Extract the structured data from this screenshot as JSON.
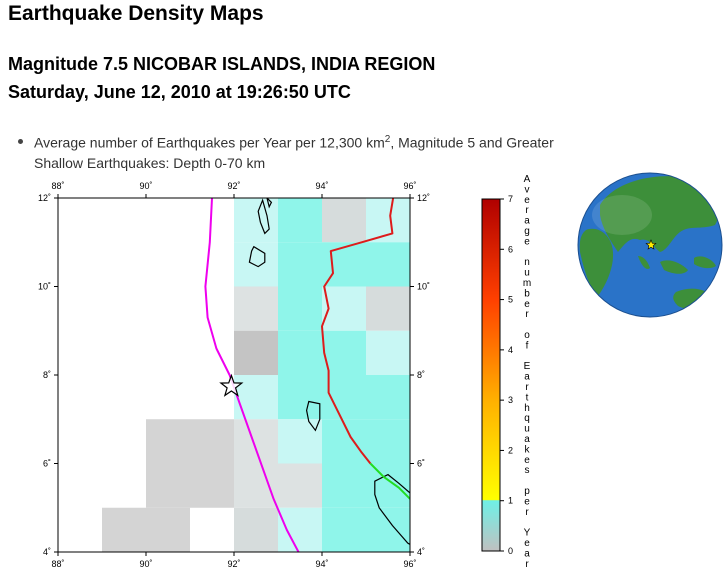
{
  "page": {
    "title": "Earthquake Density Maps",
    "event_line": "Magnitude 7.5 NICOBAR ISLANDS, INDIA REGION",
    "date_line": "Saturday, June 12, 2010 at 19:26:50 UTC",
    "bullet": {
      "text_before": "Average number of Earthquakes per Year per 12,300 km",
      "superscript": "2",
      "text_after": ", Magnitude 5 and Greater",
      "second_line": "Shallow Earthquakes: Depth 0-70 km"
    }
  },
  "map": {
    "lon_range": [
      88,
      96
    ],
    "lat_range": [
      4,
      12
    ],
    "lon_ticks": [
      {
        "value": 88,
        "label": "88˚"
      },
      {
        "value": 90,
        "label": "90˚"
      },
      {
        "value": 92,
        "label": "92˚"
      },
      {
        "value": 94,
        "label": "94˚"
      },
      {
        "value": 96,
        "label": "96˚"
      }
    ],
    "lat_ticks": [
      {
        "value": 4,
        "label": "4˚"
      },
      {
        "value": 6,
        "label": "6˚"
      },
      {
        "value": 8,
        "label": "8˚"
      },
      {
        "value": 10,
        "label": "10˚"
      },
      {
        "value": 12,
        "label": "12˚"
      }
    ],
    "cell_size_deg": 1,
    "density_cells": [
      {
        "lon": 92.5,
        "lat": 11.5,
        "value": 1.0
      },
      {
        "lon": 93.5,
        "lat": 11.5,
        "value": 1.2
      },
      {
        "lon": 94.5,
        "lat": 11.5,
        "value": 0.7
      },
      {
        "lon": 95.5,
        "lat": 11.5,
        "value": 1.1
      },
      {
        "lon": 92.5,
        "lat": 10.5,
        "value": 1.0
      },
      {
        "lon": 93.5,
        "lat": 10.5,
        "value": 1.3
      },
      {
        "lon": 94.5,
        "lat": 10.5,
        "value": 1.3
      },
      {
        "lon": 95.5,
        "lat": 10.5,
        "value": 1.3
      },
      {
        "lon": 96.5,
        "lat": 10.5,
        "value": 0.2
      },
      {
        "lon": 92.5,
        "lat": 9.5,
        "value": 0.6
      },
      {
        "lon": 93.5,
        "lat": 9.5,
        "value": 1.3
      },
      {
        "lon": 94.5,
        "lat": 9.5,
        "value": 1.1
      },
      {
        "lon": 95.5,
        "lat": 9.5,
        "value": 0.8
      },
      {
        "lon": 92.5,
        "lat": 8.5,
        "value": 0.1
      },
      {
        "lon": 93.5,
        "lat": 8.5,
        "value": 1.3
      },
      {
        "lon": 94.5,
        "lat": 8.5,
        "value": 1.2
      },
      {
        "lon": 95.5,
        "lat": 8.5,
        "value": 1.1
      },
      {
        "lon": 92.5,
        "lat": 7.5,
        "value": 1.0
      },
      {
        "lon": 93.5,
        "lat": 7.5,
        "value": 1.3
      },
      {
        "lon": 94.5,
        "lat": 7.5,
        "value": 1.3
      },
      {
        "lon": 95.5,
        "lat": 7.5,
        "value": 1.2
      },
      {
        "lon": 96.5,
        "lat": 7.5,
        "value": 0.2
      },
      {
        "lon": 90.5,
        "lat": 6.5,
        "value": 0.2
      },
      {
        "lon": 91.5,
        "lat": 6.5,
        "value": 0.4
      },
      {
        "lon": 92.5,
        "lat": 6.5,
        "value": 0.6
      },
      {
        "lon": 93.5,
        "lat": 6.5,
        "value": 1.0
      },
      {
        "lon": 94.5,
        "lat": 6.5,
        "value": 1.3
      },
      {
        "lon": 95.5,
        "lat": 6.5,
        "value": 1.2
      },
      {
        "lon": 96.5,
        "lat": 6.5,
        "value": 0.2
      },
      {
        "lon": 90.5,
        "lat": 5.5,
        "value": 0.2
      },
      {
        "lon": 91.5,
        "lat": 5.5,
        "value": 0.3
      },
      {
        "lon": 92.5,
        "lat": 5.5,
        "value": 0.5
      },
      {
        "lon": 93.5,
        "lat": 5.5,
        "value": 0.6
      },
      {
        "lon": 94.5,
        "lat": 5.5,
        "value": 1.2
      },
      {
        "lon": 95.5,
        "lat": 5.5,
        "value": 1.3
      },
      {
        "lon": 96.5,
        "lat": 5.5,
        "value": 1.3
      },
      {
        "lon": 89.5,
        "lat": 4.5,
        "value": 0.2
      },
      {
        "lon": 90.5,
        "lat": 4.5,
        "value": 0.2
      },
      {
        "lon": 92.5,
        "lat": 4.5,
        "value": 0.8
      },
      {
        "lon": 93.5,
        "lat": 4.5,
        "value": 1.0
      },
      {
        "lon": 94.5,
        "lat": 4.5,
        "value": 1.3
      },
      {
        "lon": 95.5,
        "lat": 4.5,
        "value": 1.3
      },
      {
        "lon": 96.5,
        "lat": 4.5,
        "value": 1.3
      },
      {
        "lon": 88.5,
        "lat": 3.5,
        "value": 0.2
      }
    ],
    "epicenter": {
      "lon": 91.94,
      "lat": 7.74
    },
    "plate_boundary_magenta": [
      [
        91.5,
        12
      ],
      [
        91.45,
        11
      ],
      [
        91.35,
        10
      ],
      [
        91.4,
        9.3
      ],
      [
        91.6,
        8.6
      ],
      [
        91.9,
        8
      ],
      [
        92.15,
        7.3
      ],
      [
        92.4,
        6.6
      ],
      [
        92.65,
        5.9
      ],
      [
        92.9,
        5.2
      ],
      [
        93.2,
        4.5
      ],
      [
        93.6,
        3.75
      ]
    ],
    "plate_boundary_red": [
      [
        95.7,
        12.5
      ],
      [
        95.55,
        11.6
      ],
      [
        95.6,
        11.2
      ],
      [
        94.9,
        11.0
      ],
      [
        94.2,
        10.8
      ],
      [
        94.25,
        10.3
      ],
      [
        94.05,
        10.0
      ],
      [
        94.15,
        9.5
      ],
      [
        94.0,
        9.1
      ],
      [
        94.05,
        8.5
      ],
      [
        94.15,
        8.1
      ],
      [
        94.15,
        7.6
      ],
      [
        94.35,
        7.2
      ],
      [
        94.65,
        6.6
      ],
      [
        94.9,
        6.25
      ],
      [
        95.1,
        6.0
      ]
    ],
    "plate_boundary_green": [
      [
        95.1,
        6.0
      ],
      [
        95.4,
        5.7
      ],
      [
        95.75,
        5.45
      ],
      [
        96.1,
        5.1
      ]
    ],
    "coastlines": [
      [
        [
          92.65,
          11.95
        ],
        [
          92.75,
          11.6
        ],
        [
          92.8,
          11.3
        ],
        [
          92.7,
          11.2
        ],
        [
          92.6,
          11.45
        ],
        [
          92.55,
          11.7
        ],
        [
          92.65,
          11.95
        ]
      ],
      [
        [
          92.75,
          12.0
        ],
        [
          92.85,
          11.9
        ],
        [
          92.8,
          11.8
        ],
        [
          92.75,
          12.0
        ]
      ],
      [
        [
          92.45,
          10.9
        ],
        [
          92.7,
          10.75
        ],
        [
          92.7,
          10.55
        ],
        [
          92.55,
          10.45
        ],
        [
          92.35,
          10.55
        ],
        [
          92.4,
          10.8
        ],
        [
          92.45,
          10.9
        ]
      ],
      [
        [
          93.7,
          7.4
        ],
        [
          93.95,
          7.35
        ],
        [
          93.95,
          7.0
        ],
        [
          93.85,
          6.75
        ],
        [
          93.7,
          6.95
        ],
        [
          93.65,
          7.2
        ],
        [
          93.7,
          7.4
        ]
      ],
      [
        [
          95.2,
          5.6
        ],
        [
          95.5,
          5.75
        ],
        [
          95.75,
          5.55
        ],
        [
          96.1,
          5.25
        ],
        [
          96.3,
          5.05
        ],
        [
          96.3,
          4.0
        ],
        [
          95.95,
          4.2
        ],
        [
          95.6,
          4.6
        ],
        [
          95.3,
          5.0
        ],
        [
          95.2,
          5.3
        ],
        [
          95.2,
          5.6
        ]
      ]
    ]
  },
  "colorbar": {
    "range": [
      0,
      7
    ],
    "ticks": [
      0,
      1,
      2,
      3,
      4,
      5,
      6,
      7
    ],
    "label": "Average number of Earthquakes per Year",
    "stops": [
      {
        "value": 0,
        "color": "#c0c0c0"
      },
      {
        "value": 1,
        "color": "#6ff0e6"
      },
      {
        "value": 1.02,
        "color": "#ffff00"
      },
      {
        "value": 3,
        "color": "#ffb000"
      },
      {
        "value": 5,
        "color": "#ff4000"
      },
      {
        "value": 7,
        "color": "#b00000"
      }
    ]
  },
  "globe": {
    "icon": "globe-locator-icon",
    "ocean_color": "#2a73c8",
    "land_color": "#3d8f3a"
  },
  "colors": {
    "magenta_boundary": "#ee00ee",
    "red_boundary": "#dd1c1c",
    "green_boundary": "#22dd22",
    "coast": "#000000"
  }
}
